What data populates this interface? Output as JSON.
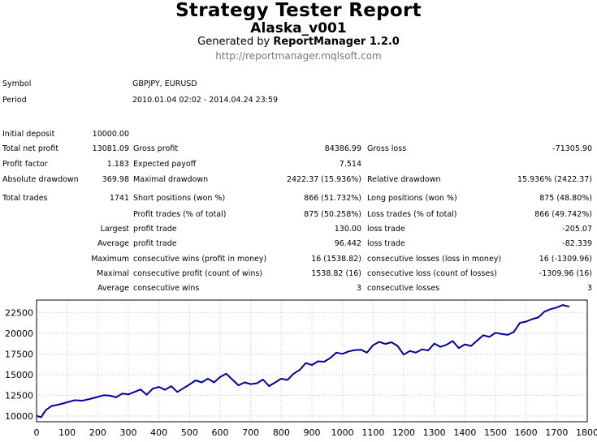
{
  "report": {
    "title": "Strategy Tester Report",
    "subtitle": "Alaska_v001",
    "generated_prefix": "Generated by",
    "generated_app": "ReportManager 1.2.0",
    "url": "http://reportmanager.mqlsoft.com"
  },
  "info": {
    "symbol_label": "Symbol",
    "symbol_value": "GBPJPY, EURUSD",
    "period_label": "Period",
    "period_value": "2010.01.04 02:02 - 2014.04.24 23:59"
  },
  "stats": {
    "initial_deposit": {
      "label": "Initial deposit",
      "value": "10000.00"
    },
    "total_net_profit": {
      "label": "Total net profit",
      "value": "13081.09"
    },
    "gross_profit": {
      "label": "Gross profit",
      "value": "84386.99"
    },
    "gross_loss": {
      "label": "Gross loss",
      "value": "-71305.90"
    },
    "profit_factor": {
      "label": "Profit factor",
      "value": "1.183"
    },
    "expected_payoff": {
      "label": "Expected payoff",
      "value": "7.514"
    },
    "absolute_drawdown": {
      "label": "Absolute drawdown",
      "value": "369.98"
    },
    "maximal_drawdown": {
      "label": "Maximal drawdown",
      "value": "2422.37 (15.936%)"
    },
    "relative_drawdown": {
      "label": "Relative drawdown",
      "value": "15.936% (2422.37)"
    },
    "total_trades": {
      "label": "Total trades",
      "value": "1741"
    },
    "short_positions": {
      "label": "Short positions (won %)",
      "value": "866 (51.732%)"
    },
    "long_positions": {
      "label": "Long positions (won %)",
      "value": "875 (48.80%)"
    },
    "profit_trades": {
      "label": "Profit trades (% of total)",
      "value": "875 (50.258%)"
    },
    "loss_trades": {
      "label": "Loss trades (% of total)",
      "value": "866 (49.742%)"
    },
    "largest_label": "Largest",
    "largest_profit_trade": {
      "label": "profit trade",
      "value": "130.00"
    },
    "largest_loss_trade": {
      "label": "loss trade",
      "value": "-205.07"
    },
    "average_label": "Average",
    "average_profit_trade": {
      "label": "profit trade",
      "value": "96.442"
    },
    "average_loss_trade": {
      "label": "loss trade",
      "value": "-82.339"
    },
    "maximum_label": "Maximum",
    "max_consecutive_wins": {
      "label": "consecutive wins (profit in money)",
      "value": "16 (1538.82)"
    },
    "max_consecutive_losses": {
      "label": "consecutive losses (loss in money)",
      "value": "16 (-1309.96)"
    },
    "maximal_label": "Maximal",
    "maximal_consecutive_profit": {
      "label": "consecutive profit (count of wins)",
      "value": "1538.82 (16)"
    },
    "maximal_consecutive_loss": {
      "label": "consecutive loss (count of losses)",
      "value": "-1309.96 (16)"
    },
    "average2_label": "Average",
    "avg_consecutive_wins": {
      "label": "consecutive wins",
      "value": "3"
    },
    "avg_consecutive_losses": {
      "label": "consecutive losses",
      "value": "3"
    }
  },
  "chart_data": {
    "type": "line",
    "title": "",
    "xlabel": "",
    "ylabel": "",
    "xlim": [
      0,
      1800
    ],
    "ylim": [
      9300,
      24000
    ],
    "xticks": [
      0,
      100,
      200,
      300,
      400,
      500,
      600,
      700,
      800,
      900,
      1000,
      1100,
      1200,
      1300,
      1400,
      1500,
      1600,
      1700,
      1800
    ],
    "yticks": [
      10000,
      12500,
      15000,
      17500,
      20000,
      22500
    ],
    "grid": true,
    "line_color": "#0000a0",
    "series": [
      {
        "name": "",
        "x": [
          0,
          15,
          30,
          50,
          75,
          100,
          125,
          150,
          175,
          200,
          220,
          240,
          260,
          280,
          300,
          320,
          340,
          360,
          380,
          400,
          420,
          440,
          460,
          480,
          500,
          520,
          540,
          560,
          580,
          600,
          620,
          640,
          660,
          680,
          700,
          720,
          740,
          760,
          780,
          800,
          820,
          840,
          860,
          880,
          900,
          920,
          940,
          960,
          980,
          1000,
          1020,
          1040,
          1060,
          1080,
          1100,
          1120,
          1140,
          1160,
          1180,
          1200,
          1220,
          1240,
          1260,
          1280,
          1300,
          1320,
          1340,
          1360,
          1380,
          1400,
          1420,
          1440,
          1460,
          1480,
          1500,
          1520,
          1540,
          1560,
          1580,
          1600,
          1620,
          1640,
          1660,
          1680,
          1700,
          1720,
          1741
        ],
        "y": [
          10000,
          9850,
          10700,
          11200,
          11400,
          11650,
          11900,
          11850,
          12050,
          12300,
          12500,
          12450,
          12250,
          12700,
          12600,
          12900,
          13200,
          12550,
          13300,
          13500,
          13150,
          13600,
          12900,
          13350,
          13800,
          14300,
          14050,
          14500,
          14050,
          14700,
          15100,
          14400,
          13700,
          14050,
          13850,
          13950,
          14400,
          13600,
          14050,
          14500,
          14350,
          15100,
          15550,
          16400,
          16150,
          16600,
          16550,
          17000,
          17650,
          17500,
          17800,
          17950,
          18000,
          17650,
          18550,
          18950,
          18700,
          18900,
          18450,
          17400,
          17850,
          17650,
          18050,
          17900,
          18750,
          18350,
          18600,
          19050,
          18200,
          18650,
          18450,
          19100,
          19750,
          19550,
          20050,
          19900,
          19800,
          20150,
          21250,
          21400,
          21700,
          21900,
          22600,
          22900,
          23100,
          23400,
          23200
        ]
      }
    ]
  }
}
